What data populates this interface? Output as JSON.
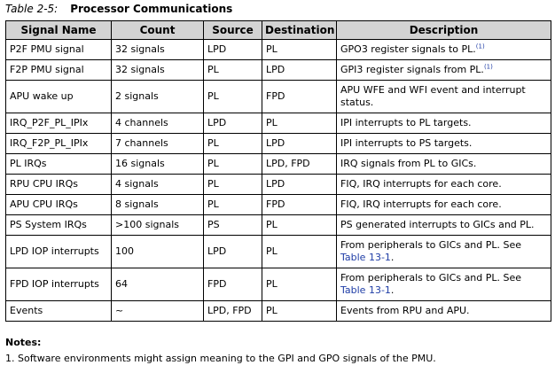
{
  "caption": {
    "number": "Table 2-5:",
    "title": "Processor Communications"
  },
  "headers": [
    "Signal Name",
    "Count",
    "Source",
    "Destination",
    "Description"
  ],
  "rows": [
    {
      "signal": "P2F PMU signal",
      "count": "32 signals",
      "source": "LPD",
      "dest": "PL",
      "desc": "GPO3 register signals to PL.",
      "sup": "(1)"
    },
    {
      "signal": "F2P PMU signal",
      "count": "32 signals",
      "source": "PL",
      "dest": "LPD",
      "desc": "GPI3 register signals from PL.",
      "sup": "(1)"
    },
    {
      "signal": "APU wake up",
      "count": "2 signals",
      "source": "PL",
      "dest": "FPD",
      "desc": "APU WFE and WFI event and interrupt status."
    },
    {
      "signal": "IRQ_P2F_PL_IPIx",
      "count": "4 channels",
      "source": "LPD",
      "dest": "PL",
      "desc": "IPI interrupts to PL targets."
    },
    {
      "signal": "IRQ_F2P_PL_IPIx",
      "count": "7 channels",
      "source": "PL",
      "dest": "LPD",
      "desc": "IPI interrupts to PS targets."
    },
    {
      "signal": "PL IRQs",
      "count": "16 signals",
      "source": "PL",
      "dest": "LPD, FPD",
      "desc": "IRQ signals from PL to GICs."
    },
    {
      "signal": "RPU CPU IRQs",
      "count": "4 signals",
      "source": "PL",
      "dest": "LPD",
      "desc": "FIQ, IRQ interrupts for each core."
    },
    {
      "signal": "APU CPU IRQs",
      "count": "8 signals",
      "source": "PL",
      "dest": "FPD",
      "desc": "FIQ, IRQ interrupts for each core."
    },
    {
      "signal": "PS System IRQs",
      "count": ">100 signals",
      "source": "PS",
      "dest": "PL",
      "desc": "PS generated interrupts to GICs and PL."
    },
    {
      "signal": "LPD IOP interrupts",
      "count": "100",
      "source": "LPD",
      "dest": "PL",
      "desc": "From peripherals to GICs and PL. See",
      "link": "Table 13-1",
      "after": "."
    },
    {
      "signal": "FPD IOP interrupts",
      "count": "64",
      "source": "FPD",
      "dest": "PL",
      "desc": "From peripherals to GICs and PL. See",
      "link": "Table 13-1",
      "after": "."
    },
    {
      "signal": "Events",
      "count": "~",
      "source": "LPD, FPD",
      "dest": "PL",
      "desc": "Events from RPU and APU."
    }
  ],
  "notes": {
    "heading": "Notes:",
    "items": [
      "1.  Software environments might assign meaning to the GPI and GPO signals of the PMU."
    ]
  },
  "colors": {
    "header_bg": "#d3d3d3",
    "link": "#1f3da6"
  }
}
